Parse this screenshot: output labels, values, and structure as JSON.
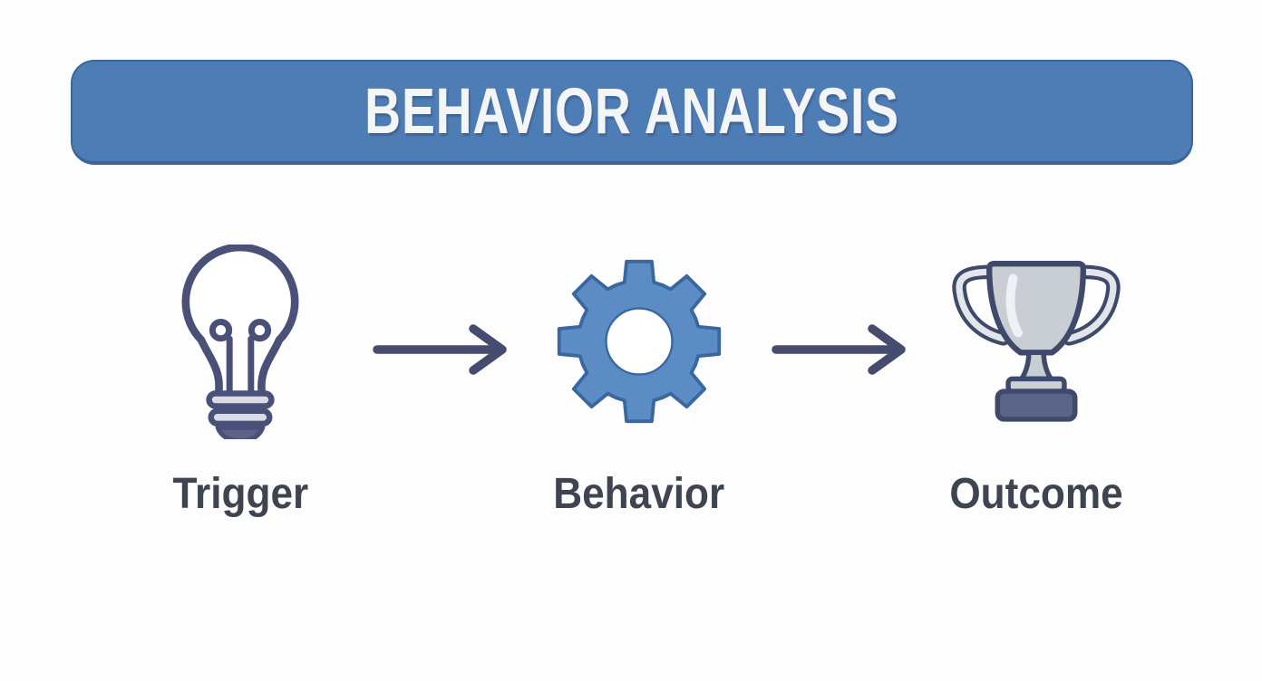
{
  "header": {
    "title": "BEHAVIOR ANALYSIS"
  },
  "diagram": {
    "steps": [
      {
        "id": "trigger",
        "label": "Trigger",
        "icon": "lightbulb-icon"
      },
      {
        "id": "behavior",
        "label": "Behavior",
        "icon": "gear-icon"
      },
      {
        "id": "outcome",
        "label": "Outcome",
        "icon": "trophy-icon"
      }
    ],
    "connectors": [
      {
        "from": "trigger",
        "to": "behavior",
        "icon": "arrow-right-icon"
      },
      {
        "from": "behavior",
        "to": "outcome",
        "icon": "arrow-right-icon"
      }
    ]
  },
  "colors": {
    "banner_blue": "#4e7db6",
    "banner_border": "#3b669d",
    "title_text": "#f3f5f7",
    "gear_blue": "#5b8cc4",
    "gear_outline": "#3a679f",
    "outline_slate": "#4a5178",
    "arrow_slate": "#454c6d",
    "label_text": "#3e4450",
    "lightbulb_base_gray": "#d9dce6",
    "lightbulb_cap_slate": "#5a6385",
    "trophy_silver": "#c9cdd4",
    "trophy_outline": "#3f4a6b",
    "trophy_base_slate": "#5a6488",
    "background": "#fdfdfd"
  }
}
